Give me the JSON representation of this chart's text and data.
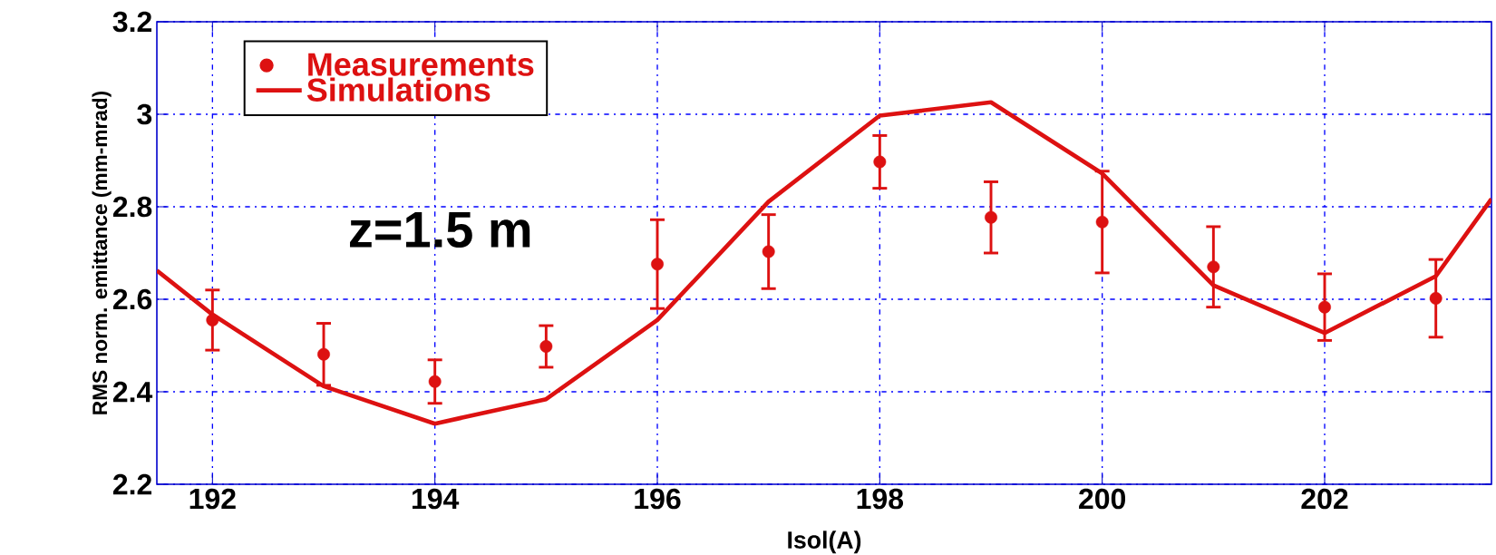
{
  "chart_data": {
    "type": "scatter",
    "xlabel": "Isol(A)",
    "ylabel": "RMS norm. emittance (mm-mrad)",
    "annotations": [
      "z=1.5 m"
    ],
    "series": [
      {
        "name": "Measurements",
        "type": "scatter",
        "color": "#dd1111",
        "x": [
          192,
          193,
          194,
          195,
          196,
          197,
          198,
          199,
          200,
          201,
          202,
          203
        ],
        "values": [
          2.555,
          2.481,
          2.422,
          2.498,
          2.676,
          2.703,
          2.897,
          2.777,
          2.767,
          2.67,
          2.583,
          2.602
        ],
        "errors": [
          0.065,
          0.067,
          0.047,
          0.045,
          0.096,
          0.08,
          0.057,
          0.077,
          0.11,
          0.087,
          0.072,
          0.084
        ]
      },
      {
        "name": "Simulations",
        "type": "line",
        "color": "#dd1111",
        "marker": "none",
        "line_style": "solid",
        "x": [
          191.5,
          192,
          193,
          194,
          195,
          196,
          197,
          198,
          199,
          200,
          201,
          202,
          203,
          203.5
        ],
        "values": [
          2.662,
          2.567,
          2.412,
          2.331,
          2.384,
          2.555,
          2.811,
          2.997,
          3.026,
          2.872,
          2.63,
          2.527,
          2.65,
          2.817
        ]
      }
    ],
    "xlim": [
      191.5,
      203.5
    ],
    "ylim": [
      2.2,
      3.2
    ],
    "xticks": [
      192,
      194,
      196,
      198,
      200,
      202
    ],
    "yticks": [
      2.2,
      2.4,
      2.6,
      2.8,
      3,
      3.2
    ],
    "grid": true,
    "legend": "top left",
    "marker": "circle"
  }
}
